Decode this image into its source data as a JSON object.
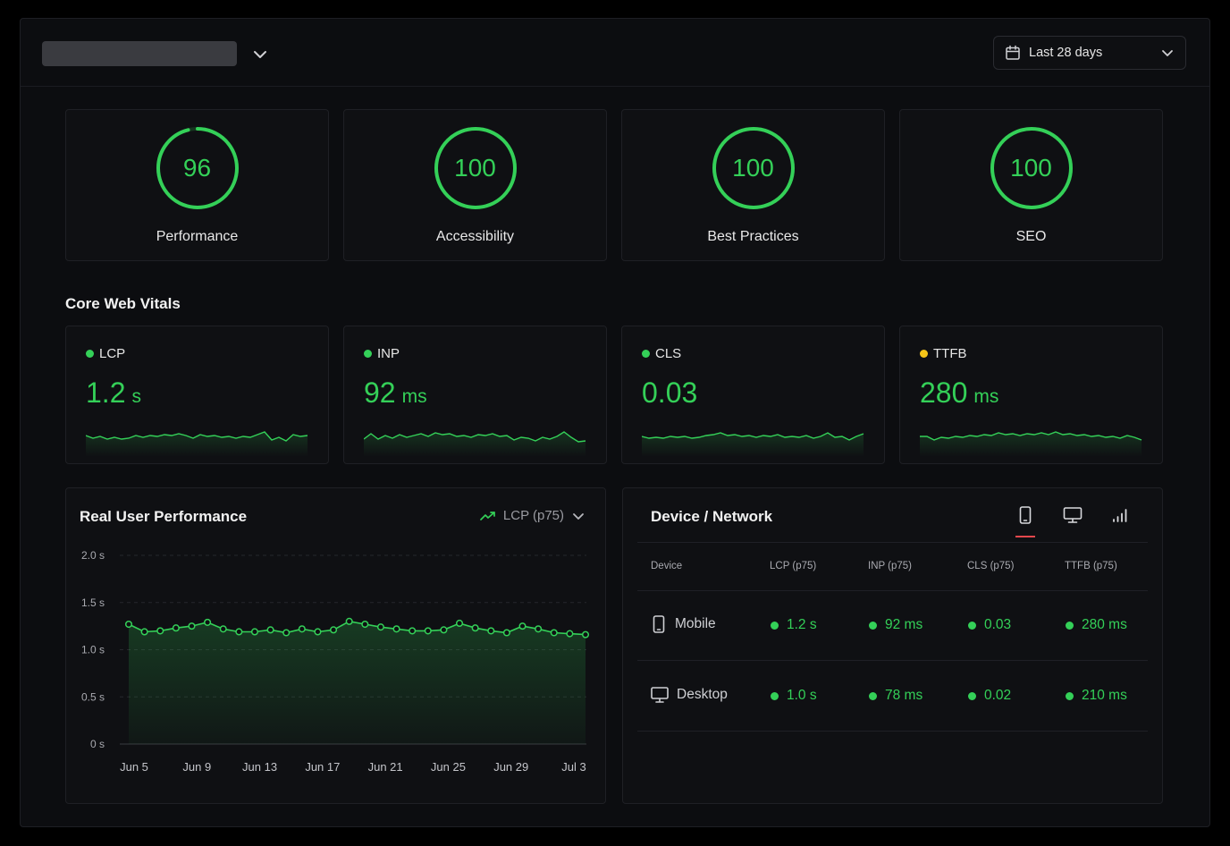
{
  "header": {
    "site_selector": "",
    "date_range": "Last 28 days"
  },
  "scores": [
    {
      "label": "Performance",
      "value": "96",
      "fraction": 0.96
    },
    {
      "label": "Accessibility",
      "value": "100",
      "fraction": 1.0
    },
    {
      "label": "Best Practices",
      "value": "100",
      "fraction": 1.0
    },
    {
      "label": "SEO",
      "value": "100",
      "fraction": 1.0
    }
  ],
  "core_web_vitals": {
    "title": "Core Web Vitals",
    "items": [
      {
        "name": "LCP",
        "value": "1.2",
        "unit": "s",
        "status": "good"
      },
      {
        "name": "INP",
        "value": "92",
        "unit": "ms",
        "status": "good"
      },
      {
        "name": "CLS",
        "value": "0.03",
        "unit": "",
        "status": "good"
      },
      {
        "name": "TTFB",
        "value": "280",
        "unit": "ms",
        "status": "needs-improvement"
      }
    ]
  },
  "real_user_performance": {
    "title": "Real User Performance",
    "metric_select": "LCP (p75)"
  },
  "chart_data": {
    "type": "line",
    "title": "Real User Performance",
    "xlabel": "",
    "ylabel": "",
    "x_ticks": [
      "Jun 5",
      "Jun 9",
      "Jun 13",
      "Jun 17",
      "Jun 21",
      "Jun 25",
      "Jun 29",
      "Jul 3"
    ],
    "y_ticks": [
      "0 s",
      "0.5 s",
      "1.0 s",
      "1.5 s",
      "2.0 s"
    ],
    "ylim": [
      0,
      2.0
    ],
    "grid": true,
    "series": [
      {
        "name": "LCP (p75)",
        "values": [
          1.27,
          1.19,
          1.2,
          1.23,
          1.25,
          1.29,
          1.22,
          1.19,
          1.19,
          1.21,
          1.18,
          1.22,
          1.19,
          1.21,
          1.3,
          1.27,
          1.24,
          1.22,
          1.2,
          1.2,
          1.21,
          1.28,
          1.23,
          1.2,
          1.18,
          1.25,
          1.22,
          1.18,
          1.17,
          1.16
        ]
      }
    ]
  },
  "device_network": {
    "title": "Device / Network",
    "tabs": [
      "mobile-icon",
      "desktop-icon",
      "network-icon"
    ],
    "active_tab": "mobile-icon",
    "columns": [
      "Device",
      "LCP (p75)",
      "INP (p75)",
      "CLS (p75)",
      "TTFB (p75)"
    ],
    "rows": [
      {
        "device": "Mobile",
        "icon": "mobile-icon",
        "lcp": "1.2 s",
        "inp": "92 ms",
        "cls": "0.03",
        "ttfb": "280 ms"
      },
      {
        "device": "Desktop",
        "icon": "desktop-icon",
        "lcp": "1.0 s",
        "inp": "78 ms",
        "cls": "0.02",
        "ttfb": "210 ms"
      }
    ]
  },
  "colors": {
    "good": "#34d058",
    "needs_improvement": "#f5c518",
    "accent_tab": "#e5484d"
  }
}
